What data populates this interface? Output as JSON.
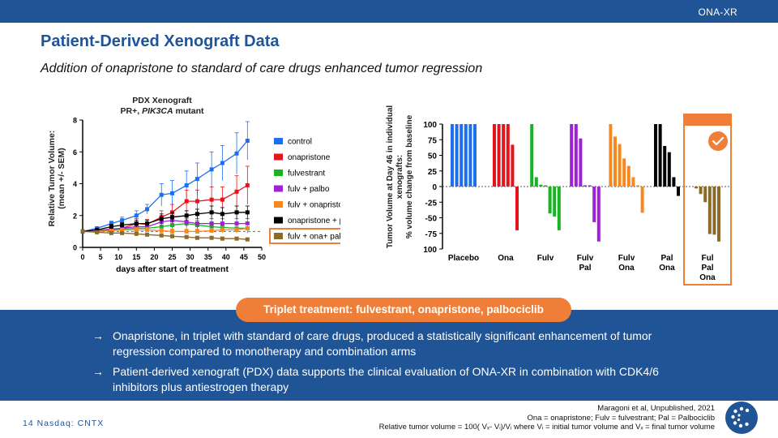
{
  "header": {
    "tag": "ONA-XR"
  },
  "title": "Patient-Derived Xenograft Data",
  "subtitle": "Addition of onapristone to standard of care drugs enhanced tumor regression",
  "colors": {
    "brand": "#1f5496",
    "accent": "#ef7e38",
    "control": "#1e6ff0",
    "onapristone": "#e3141b",
    "fulvestrant": "#18b323",
    "fulv_palbo": "#a020d6",
    "fulv_onapristone": "#f5891f",
    "onapristone_palbo": "#000000",
    "triplet": "#8b6a2a"
  },
  "chart_data": [
    {
      "type": "line",
      "title_line1": "PDX Xenograft",
      "title_line2_prefix": "PR+, ",
      "title_line2_italic": "PIK3CA",
      "title_line2_suffix": " mutant",
      "xlabel": "days after start of treatment",
      "ylabel_line1": "Relative Tumor Volume:",
      "ylabel_line2": "(mean +/- SEM)",
      "xlim": [
        0,
        50
      ],
      "ylim": [
        0,
        8
      ],
      "xticks": [
        "0",
        "5",
        "10",
        "15",
        "20",
        "25",
        "30",
        "35",
        "40",
        "45",
        "50"
      ],
      "yticks": [
        "0",
        "2",
        "4",
        "6",
        "8"
      ],
      "reference_line": 1,
      "x": [
        0,
        4,
        8,
        11,
        15,
        18,
        22,
        25,
        29,
        32,
        36,
        39,
        43,
        46
      ],
      "series": [
        {
          "name": "control",
          "color": "#1e6ff0",
          "values": [
            1,
            1.2,
            1.5,
            1.7,
            2.0,
            2.4,
            3.3,
            3.4,
            3.9,
            4.3,
            4.9,
            5.3,
            5.9,
            6.7
          ],
          "err": [
            0,
            0.1,
            0.15,
            0.2,
            0.3,
            0.3,
            0.7,
            0.8,
            0.9,
            1.0,
            1.1,
            1.1,
            1.3,
            1.2
          ]
        },
        {
          "name": "onapristone",
          "color": "#e3141b",
          "values": [
            1,
            1.05,
            1.1,
            1.2,
            1.5,
            1.45,
            1.9,
            2.2,
            2.9,
            2.9,
            3.0,
            3.0,
            3.5,
            3.9
          ],
          "err": [
            0,
            0.1,
            0.15,
            0.15,
            0.3,
            0.3,
            0.4,
            0.5,
            0.7,
            0.7,
            0.8,
            0.8,
            1.0,
            1.2
          ]
        },
        {
          "name": "fulvestrant",
          "color": "#18b323",
          "values": [
            1,
            1.05,
            1.1,
            1.15,
            1.2,
            1.2,
            1.3,
            1.4,
            1.5,
            1.4,
            1.3,
            1.25,
            1.2,
            1.2
          ],
          "err": [
            0,
            0.1,
            0.1,
            0.15,
            0.2,
            0.2,
            0.3,
            0.3,
            0.3,
            0.3,
            0.3,
            0.3,
            0.3,
            0.3
          ]
        },
        {
          "name": "fulv + palbo",
          "color": "#a020d6",
          "values": [
            1,
            1.05,
            1.15,
            1.2,
            1.3,
            1.3,
            1.6,
            1.7,
            1.6,
            1.5,
            1.5,
            1.5,
            1.5,
            1.5
          ],
          "err": [
            0,
            0.1,
            0.15,
            0.15,
            0.2,
            0.2,
            0.3,
            0.3,
            0.3,
            0.3,
            0.3,
            0.3,
            0.3,
            0.3
          ]
        },
        {
          "name": "fulv + onapristone",
          "color": "#f5891f",
          "values": [
            1,
            1.0,
            1.05,
            1.1,
            1.1,
            1.1,
            1.05,
            1.0,
            1.0,
            1.0,
            1.05,
            1.1,
            1.1,
            1.2
          ],
          "err": [
            0,
            0.08,
            0.1,
            0.1,
            0.15,
            0.15,
            0.15,
            0.15,
            0.15,
            0.15,
            0.15,
            0.2,
            0.2,
            0.2
          ]
        },
        {
          "name": "onapristone + palbo",
          "color": "#000000",
          "values": [
            1,
            1.1,
            1.3,
            1.4,
            1.5,
            1.5,
            1.8,
            1.9,
            2.0,
            2.1,
            2.2,
            2.1,
            2.2,
            2.2
          ],
          "err": [
            0,
            0.1,
            0.15,
            0.15,
            0.2,
            0.2,
            0.3,
            0.3,
            0.3,
            0.3,
            0.4,
            0.4,
            0.4,
            0.4
          ]
        },
        {
          "name": "fulv + ona+ palbo",
          "color": "#8b6a2a",
          "values": [
            1,
            0.95,
            0.9,
            0.9,
            0.85,
            0.8,
            0.75,
            0.7,
            0.65,
            0.6,
            0.6,
            0.55,
            0.55,
            0.5
          ],
          "err": [
            0,
            0.08,
            0.1,
            0.1,
            0.1,
            0.1,
            0.1,
            0.1,
            0.1,
            0.1,
            0.1,
            0.1,
            0.1,
            0.1
          ]
        }
      ],
      "highlighted_legend": "fulv + ona+ palbo",
      "grid": false,
      "legend": "right"
    },
    {
      "type": "bar",
      "ylabel_line1": "Tumor Volume at Day 46 in individual",
      "ylabel_line2": "xenografts:",
      "ylabel_line3": "% volume change from baseline",
      "ylim": [
        -100,
        100
      ],
      "yticks": [
        "100",
        "75",
        "50",
        "25",
        "0",
        "-25",
        "-50",
        "-75",
        "100"
      ],
      "reference_line": 0,
      "groups": [
        {
          "label1": "Placebo",
          "label2": "",
          "label3": "",
          "color": "#1e6ff0",
          "values": [
            100,
            100,
            100,
            100,
            100,
            100
          ]
        },
        {
          "label1": "Ona",
          "label2": "",
          "label3": "",
          "color": "#e3141b",
          "values": [
            100,
            100,
            100,
            100,
            67,
            -70
          ]
        },
        {
          "label1": "Fulv",
          "label2": "",
          "label3": "",
          "color": "#18b323",
          "values": [
            100,
            15,
            3,
            2,
            -43,
            -48,
            -70
          ]
        },
        {
          "label1": "Fulv",
          "label2": "Pal",
          "label3": "",
          "color": "#a020d6",
          "values": [
            100,
            100,
            77,
            2,
            2,
            -57,
            -88
          ]
        },
        {
          "label1": "Fulv",
          "label2": "Ona",
          "label3": "",
          "color": "#f5891f",
          "values": [
            100,
            80,
            68,
            45,
            33,
            15,
            2,
            -42
          ]
        },
        {
          "label1": "Pal",
          "label2": "Ona",
          "label3": "",
          "color": "#000000",
          "values": [
            100,
            100,
            65,
            55,
            15,
            -15
          ]
        },
        {
          "label1": "Ful",
          "label2": "Pal",
          "label3": "Ona",
          "color": "#8b6a2a",
          "values": [
            -3,
            -12,
            -25,
            -76,
            -77,
            -88
          ]
        }
      ],
      "highlighted_group": "Ful Pal Ona"
    }
  ],
  "pill": "Triplet treatment: fulvestrant, onapristone, palbociclib",
  "bullets": [
    {
      "arrow": "→",
      "text": "Onapristone, in triplet with standard of care drugs, produced a statistically significant enhancement of tumor regression compared to monotherapy and combination arms"
    },
    {
      "arrow": "→",
      "text": "Patient-derived xenograft (PDX) data supports the clinical evaluation of ONA-XR in combination with CDK4/6 inhibitors plus antiestrogen therapy"
    }
  ],
  "footer": {
    "left": "14  Nasdaq: CNTX",
    "ref1": "Maragoni et al, Unpublished, 2021",
    "ref2": "Ona = onapristone; Fulv = fulvestrant; Pal = Palbociclib",
    "ref3": "Relative tumor volume = 100( Vₓ- Vᵢ)/Vᵢ where Vᵢ = initial tumor volume and Vₓ = final tumor volume"
  }
}
